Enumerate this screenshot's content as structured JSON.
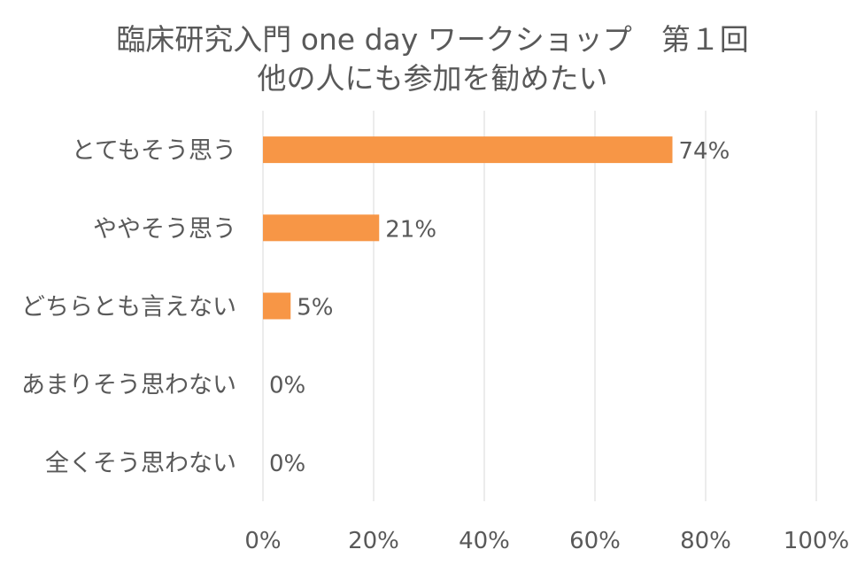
{
  "chart_data": {
    "type": "bar",
    "orientation": "horizontal",
    "title": "臨床研究入門 one day ワークショップ　第１回",
    "subtitle": "他の人にも参加を勧めたい",
    "categories": [
      "とてもそう思う",
      "ややそう思う",
      "どちらとも言えない",
      "あまりそう思わない",
      "全くそう思わない"
    ],
    "values": [
      74,
      21,
      5,
      0,
      0
    ],
    "data_labels": [
      "74%",
      "21%",
      "5%",
      "0%",
      "0%"
    ],
    "x_ticks": [
      "0%",
      "20%",
      "40%",
      "60%",
      "80%",
      "100%"
    ],
    "xlim": [
      0,
      100
    ],
    "grid": true,
    "bar_color": "#F79646",
    "grid_color": "#D9D9D9",
    "text_color": "#595959"
  }
}
